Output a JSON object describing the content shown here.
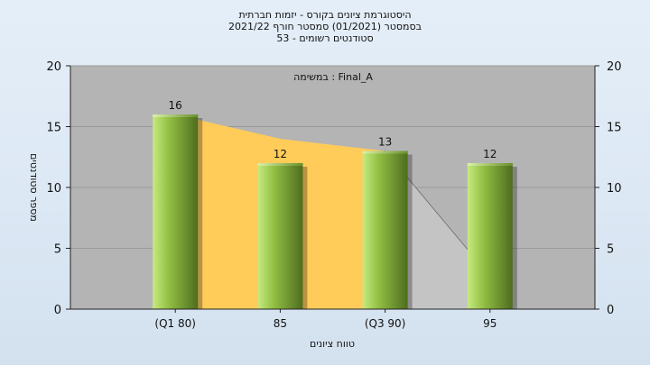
{
  "chart_data": {
    "type": "bar",
    "title_lines": [
      "היסטוגרמת ציונים בקורס - יזמות חברתית",
      "בסמסטר  (01/2021)  סמסטר חורף  2021/22",
      "סטודנטים רשומים - 53"
    ],
    "annotation": "במשימה : Final_A",
    "xlabel": "טווח ציונים",
    "ylabel": "מספר סטודנטים",
    "categories": [
      "(Q1 80)",
      "85",
      "(Q3 90)",
      "95"
    ],
    "values": [
      16,
      12,
      13,
      12
    ],
    "ylim": [
      0,
      20
    ],
    "yticks": [
      0,
      5,
      10,
      15,
      20
    ],
    "grid": true,
    "area_series": {
      "points": [
        [
          0,
          16
        ],
        [
          1,
          14
        ],
        [
          2,
          13
        ],
        [
          3,
          2.7
        ]
      ],
      "highlight_range": [
        0,
        2
      ],
      "colors": {
        "highlight": "#ffcc5a",
        "rest": "#c4c4c4"
      }
    },
    "colors": {
      "plot_bg": "#b4b4b4",
      "bar_light": "#c6ea80",
      "bar_mid": "#93c044",
      "bar_dark": "#4e6d1e"
    }
  }
}
